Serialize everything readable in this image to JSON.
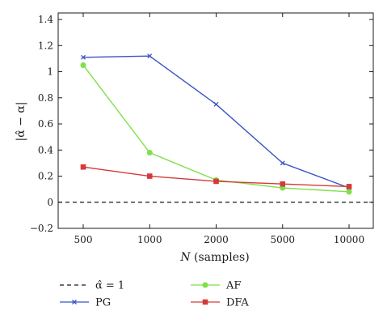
{
  "chart_data": {
    "type": "line",
    "categories": [
      "500",
      "1000",
      "2000",
      "5000",
      "10000"
    ],
    "xlabel": "N (samples)",
    "xlabel_italic_part": "N",
    "xlabel_rest": " (samples)",
    "ylabel": "|α̂ − α|",
    "ylim": [
      -0.2,
      1.45
    ],
    "yticks": [
      -0.2,
      0,
      0.2,
      0.4,
      0.6,
      0.8,
      1,
      1.2,
      1.4
    ],
    "ytick_labels": [
      "−0.2",
      "0",
      "0.2",
      "0.4",
      "0.6",
      "0.8",
      "1",
      "1.2",
      "1.4"
    ],
    "grid": false,
    "legend_position": "bottom",
    "series": [
      {
        "name": "PG",
        "color": "#3a55c0",
        "marker": "x",
        "values": [
          1.11,
          1.12,
          0.75,
          0.3,
          0.11
        ]
      },
      {
        "name": "AF",
        "color": "#7ee04a",
        "marker": "circle",
        "values": [
          1.05,
          0.38,
          0.17,
          0.11,
          0.08
        ]
      },
      {
        "name": "DFA",
        "color": "#d43a3a",
        "marker": "square",
        "values": [
          0.27,
          0.2,
          0.16,
          0.14,
          0.12
        ]
      }
    ],
    "reference_line": {
      "name": "α̂ = 1",
      "value": 0,
      "style": "dashed",
      "color": "#1a1a1a"
    }
  }
}
